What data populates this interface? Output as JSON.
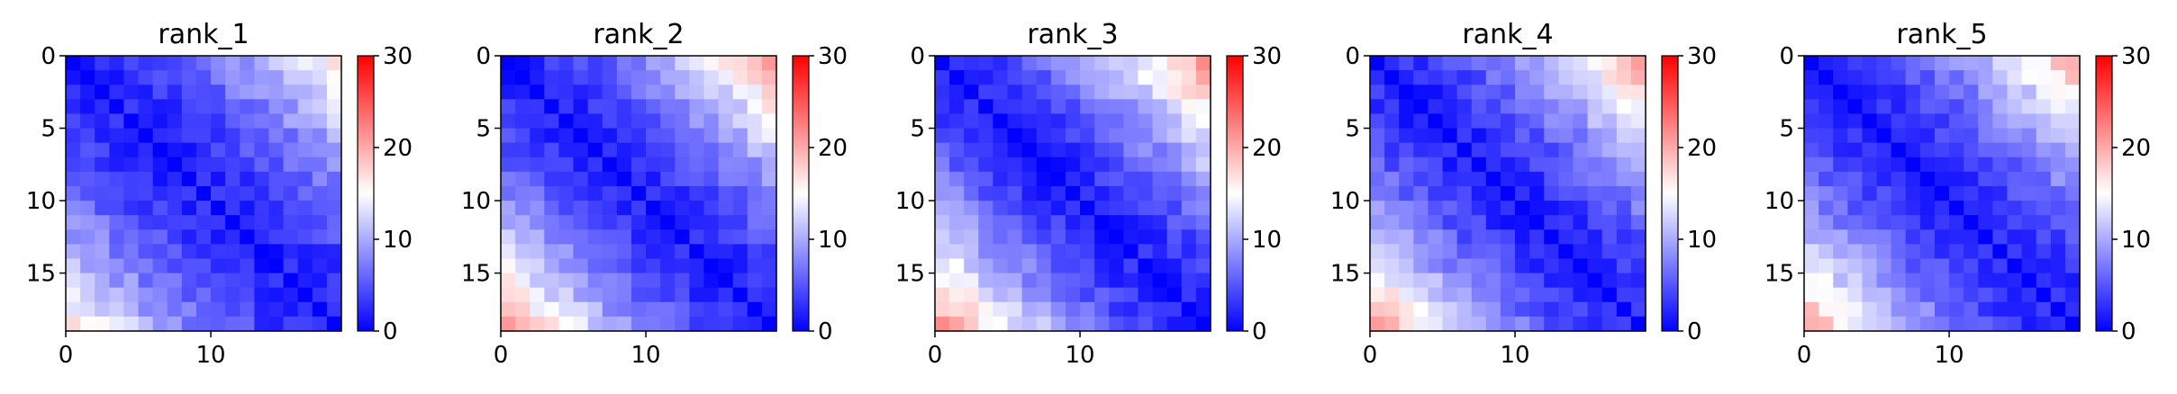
{
  "chart_data": [
    {
      "type": "heatmap",
      "title": "rank_1",
      "size": 19,
      "vmin": 0,
      "vmax": 30,
      "peak": 16,
      "base": 2,
      "xticks": [
        0,
        10
      ],
      "yticks": [
        0,
        5,
        10,
        15
      ],
      "colorbar_ticks": [
        0,
        10,
        20,
        30
      ],
      "colormap": "bwr"
    },
    {
      "type": "heatmap",
      "title": "rank_2",
      "size": 19,
      "vmin": 0,
      "vmax": 30,
      "peak": 20,
      "base": 2,
      "xticks": [
        0,
        10
      ],
      "yticks": [
        0,
        5,
        10,
        15
      ],
      "colorbar_ticks": [
        0,
        10,
        20,
        30
      ],
      "colormap": "bwr"
    },
    {
      "type": "heatmap",
      "title": "rank_3",
      "size": 19,
      "vmin": 0,
      "vmax": 30,
      "peak": 21,
      "base": 2,
      "xticks": [
        0,
        10
      ],
      "yticks": [
        0,
        5,
        10,
        15
      ],
      "colorbar_ticks": [
        0,
        10,
        20,
        30
      ],
      "colormap": "bwr"
    },
    {
      "type": "heatmap",
      "title": "rank_4",
      "size": 19,
      "vmin": 0,
      "vmax": 30,
      "peak": 20,
      "base": 2,
      "xticks": [
        0,
        10
      ],
      "yticks": [
        0,
        5,
        10,
        15
      ],
      "colorbar_ticks": [
        0,
        10,
        20,
        30
      ],
      "colormap": "bwr"
    },
    {
      "type": "heatmap",
      "title": "rank_5",
      "size": 19,
      "vmin": 0,
      "vmax": 30,
      "peak": 19,
      "base": 2,
      "xticks": [
        0,
        10
      ],
      "yticks": [
        0,
        5,
        10,
        15
      ],
      "colorbar_ticks": [
        0,
        10,
        20,
        30
      ],
      "colormap": "bwr"
    }
  ],
  "colors": {
    "low": "#0000ff",
    "mid": "#ffffff",
    "high": "#ff0000"
  }
}
